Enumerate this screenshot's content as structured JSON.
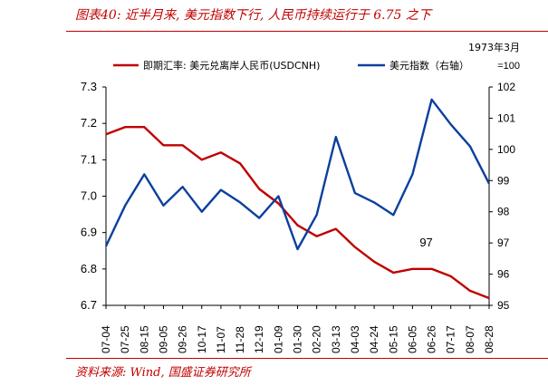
{
  "header": {
    "title": "图表40:  近半月来, 美元指数下行, 人民币持续运行于 6.75 之下"
  },
  "footer": {
    "source": "资料来源: Wind, 国盛证券研究所"
  },
  "colors": {
    "accent": "#c00000",
    "series_left": "#c00000",
    "series_right": "#0b3f9e",
    "axis": "#000000"
  },
  "chart_data": {
    "type": "line",
    "title": "",
    "x_tick_labels": [
      "07-04",
      "07-25",
      "08-15",
      "09-05",
      "09-26",
      "10-17",
      "11-07",
      "11-28",
      "12-19",
      "01-09",
      "01-30",
      "02-20",
      "03-13",
      "04-03",
      "04-24",
      "05-15",
      "06-05",
      "06-26",
      "07-17",
      "08-07",
      "08-28"
    ],
    "left_axis": {
      "ylim": [
        6.7,
        7.3
      ],
      "ticks": [
        "6.7",
        "6.8",
        "6.9",
        "7.0",
        "7.1",
        "7.2",
        "7.3"
      ]
    },
    "right_axis": {
      "ylim": [
        95,
        102
      ],
      "ticks": [
        "95",
        "96",
        "97",
        "98",
        "99",
        "100",
        "101",
        "102"
      ],
      "note_line1": "1973年3月",
      "note_line2": "=100"
    },
    "series": [
      {
        "name": "即期汇率: 美元兑离岸人民币(USDCNH)",
        "axis": "left",
        "color": "#c00000",
        "x": [
          0,
          1,
          2,
          3,
          4,
          5,
          6,
          7,
          8,
          9,
          10,
          11,
          12,
          13,
          14,
          15,
          16,
          17,
          18,
          19,
          20
        ],
        "values": [
          7.17,
          7.19,
          7.19,
          7.14,
          7.14,
          7.1,
          7.12,
          7.09,
          7.02,
          6.98,
          6.92,
          6.89,
          6.91,
          6.86,
          6.82,
          6.79,
          6.8,
          6.8,
          6.78,
          6.74,
          6.72
        ]
      },
      {
        "name": "美元指数（右轴）",
        "axis": "right",
        "color": "#0b3f9e",
        "x": [
          0,
          1,
          2,
          3,
          4,
          5,
          6,
          7,
          8,
          9,
          10,
          11,
          12,
          13,
          14,
          15,
          16,
          17,
          18,
          19,
          20
        ],
        "values": [
          96.9,
          98.2,
          99.2,
          98.2,
          98.8,
          98.0,
          98.7,
          98.3,
          97.8,
          98.5,
          96.8,
          97.9,
          100.4,
          98.6,
          98.3,
          97.9,
          99.2,
          101.6,
          100.8,
          100.1,
          98.9
        ]
      }
    ],
    "annotations": [
      {
        "text": "97",
        "series": "right",
        "x": 17.0,
        "y": 97.0
      }
    ]
  }
}
